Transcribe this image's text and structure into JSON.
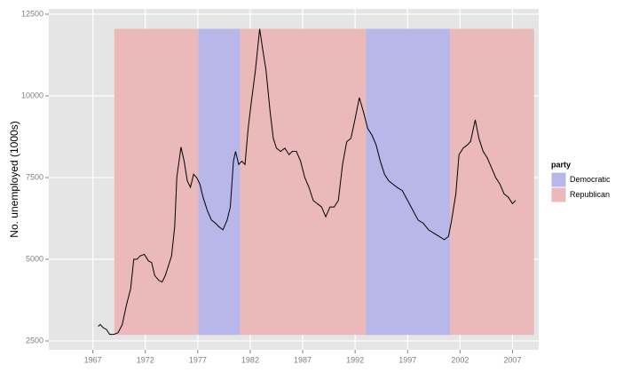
{
  "chart_data": {
    "type": "line",
    "y_label": "No. unemployed (1000s)",
    "xlim": [
      1962.8,
      2009.5
    ],
    "ylim": [
      2228,
      12663
    ],
    "xticks": [
      1967,
      1972,
      1977,
      1982,
      1987,
      1992,
      1997,
      2002,
      2007
    ],
    "yticks": [
      2500,
      5000,
      7500,
      10000,
      12500
    ],
    "grid": true,
    "legend": {
      "title": "party",
      "position": "right",
      "entries": [
        {
          "name": "Democratic",
          "color": "#b7b7ea"
        },
        {
          "name": "Republican",
          "color": "#ebb9b9"
        }
      ]
    },
    "band_range": [
      2685,
      12051
    ],
    "periods": [
      {
        "start": 1969.05,
        "end": 1977.05,
        "party": "Republican"
      },
      {
        "start": 1977.05,
        "end": 1981.05,
        "party": "Democratic"
      },
      {
        "start": 1981.05,
        "end": 1993.05,
        "party": "Republican"
      },
      {
        "start": 1993.05,
        "end": 2001.05,
        "party": "Democratic"
      },
      {
        "start": 2001.05,
        "end": 2009.05,
        "party": "Republican"
      }
    ],
    "x": [
      1967.5,
      1967.7,
      1968.0,
      1968.3,
      1968.6,
      1969.0,
      1969.4,
      1969.8,
      1970.2,
      1970.6,
      1970.9,
      1971.2,
      1971.5,
      1971.9,
      1972.3,
      1972.6,
      1972.9,
      1973.3,
      1973.6,
      1973.9,
      1974.2,
      1974.5,
      1974.8,
      1975.0,
      1975.4,
      1975.7,
      1976.0,
      1976.3,
      1976.6,
      1976.9,
      1977.2,
      1977.5,
      1977.9,
      1978.3,
      1978.7,
      1979.0,
      1979.4,
      1979.8,
      1980.1,
      1980.4,
      1980.6,
      1980.9,
      1981.2,
      1981.5,
      1981.8,
      1982.1,
      1982.5,
      1982.9,
      1983.2,
      1983.5,
      1983.9,
      1984.2,
      1984.5,
      1984.9,
      1985.3,
      1985.7,
      1986.0,
      1986.4,
      1986.8,
      1987.2,
      1987.6,
      1988.0,
      1988.4,
      1988.8,
      1989.2,
      1989.6,
      1990.0,
      1990.4,
      1990.8,
      1991.2,
      1991.6,
      1992.0,
      1992.4,
      1992.8,
      1993.2,
      1993.6,
      1994.0,
      1994.4,
      1994.8,
      1995.2,
      1995.6,
      1996.0,
      1996.5,
      1997.0,
      1997.5,
      1998.0,
      1998.5,
      1999.0,
      1999.5,
      2000.0,
      2000.5,
      2000.9,
      2001.2,
      2001.6,
      2001.9,
      2002.3,
      2002.7,
      2003.0,
      2003.45,
      2003.8,
      2004.2,
      2004.6,
      2005.0,
      2005.4,
      2005.8,
      2006.2,
      2006.6,
      2007.0,
      2007.3
    ],
    "series": [
      {
        "color": "#000000",
        "values": [
          2944,
          3000,
          2900,
          2850,
          2700,
          2700,
          2750,
          3000,
          3600,
          4100,
          5000,
          5000,
          5100,
          5150,
          4950,
          4900,
          4500,
          4350,
          4300,
          4500,
          4800,
          5100,
          6000,
          7500,
          8433,
          8000,
          7400,
          7200,
          7600,
          7500,
          7300,
          6900,
          6500,
          6200,
          6100,
          6000,
          5900,
          6200,
          6600,
          8000,
          8300,
          7900,
          8000,
          7900,
          9000,
          9800,
          10800,
          12051,
          11400,
          10800,
          9500,
          8700,
          8400,
          8300,
          8400,
          8200,
          8300,
          8300,
          8000,
          7500,
          7200,
          6800,
          6700,
          6600,
          6300,
          6600,
          6600,
          6800,
          7900,
          8600,
          8700,
          9300,
          9946,
          9500,
          9000,
          8800,
          8500,
          8000,
          7600,
          7400,
          7300,
          7200,
          7100,
          6800,
          6500,
          6200,
          6100,
          5900,
          5800,
          5700,
          5600,
          5700,
          6200,
          7000,
          8200,
          8400,
          8500,
          8600,
          9266,
          8700,
          8300,
          8100,
          7800,
          7500,
          7300,
          7000,
          6900,
          6700,
          6800
        ]
      }
    ]
  }
}
